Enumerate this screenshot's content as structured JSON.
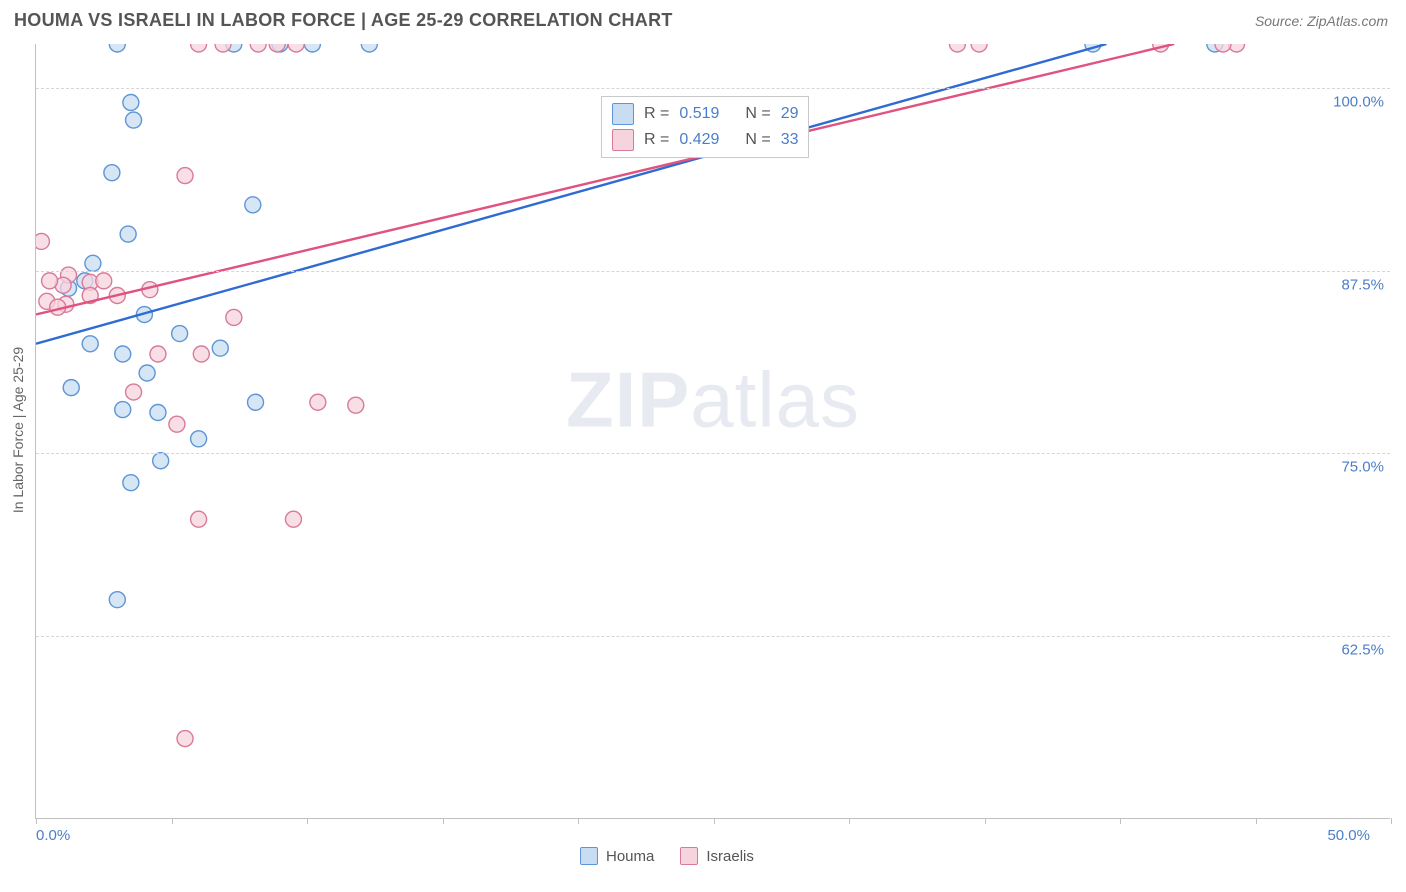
{
  "title": "HOUMA VS ISRAELI IN LABOR FORCE | AGE 25-29 CORRELATION CHART",
  "source": "Source: ZipAtlas.com",
  "yaxis_title": "In Labor Force | Age 25-29",
  "watermark_a": "ZIP",
  "watermark_b": "atlas",
  "chart": {
    "type": "scatter",
    "xlim": [
      0,
      50
    ],
    "ylim": [
      50,
      103
    ],
    "xlabel_start": "0.0%",
    "xlabel_end": "50.0%",
    "ytick_values": [
      62.5,
      75.0,
      87.5,
      100.0
    ],
    "ytick_labels": [
      "62.5%",
      "75.0%",
      "87.5%",
      "100.0%"
    ],
    "xtick_values": [
      0,
      5,
      10,
      15,
      20,
      25,
      30,
      35,
      40,
      45,
      50
    ],
    "grid_color": "#d6d6d6",
    "axis_color": "#c0c0c0",
    "background_color": "#ffffff",
    "label_color": "#4a7ec9",
    "marker_radius": 8,
    "marker_stroke_width": 1.4,
    "line_width": 2.4,
    "series": [
      {
        "name": "Houma",
        "fill": "#c9ddf2",
        "stroke": "#5d95d6",
        "line_color": "#2f6bd0",
        "r_value": "0.519",
        "n_value": "29",
        "points": [
          [
            3.0,
            103
          ],
          [
            3.5,
            99
          ],
          [
            3.6,
            97.8
          ],
          [
            2.8,
            94.2
          ],
          [
            3.4,
            90.0
          ],
          [
            8.0,
            92.0
          ],
          [
            9.0,
            103
          ],
          [
            10.2,
            103
          ],
          [
            12.3,
            103
          ],
          [
            7.3,
            103
          ],
          [
            2.1,
            88.0
          ],
          [
            1.8,
            86.8
          ],
          [
            1.2,
            86.3
          ],
          [
            4.0,
            84.5
          ],
          [
            5.3,
            83.2
          ],
          [
            2.0,
            82.5
          ],
          [
            3.2,
            81.8
          ],
          [
            6.8,
            82.2
          ],
          [
            4.1,
            80.5
          ],
          [
            1.3,
            79.5
          ],
          [
            3.2,
            78.0
          ],
          [
            4.5,
            77.8
          ],
          [
            6.0,
            76.0
          ],
          [
            8.1,
            78.5
          ],
          [
            4.6,
            74.5
          ],
          [
            3.5,
            73.0
          ],
          [
            3.0,
            65.0
          ],
          [
            39.0,
            103
          ],
          [
            43.5,
            103
          ]
        ],
        "regression": {
          "x1": 0,
          "y1": 82.5,
          "x2": 39.5,
          "y2": 103
        }
      },
      {
        "name": "Israelis",
        "fill": "#f6d4dd",
        "stroke": "#d97a9a",
        "line_color": "#e0527f",
        "r_value": "0.429",
        "n_value": "33",
        "points": [
          [
            0.2,
            89.5
          ],
          [
            1.2,
            87.2
          ],
          [
            1.0,
            86.5
          ],
          [
            2.0,
            86.7
          ],
          [
            2.5,
            86.8
          ],
          [
            3.0,
            85.8
          ],
          [
            1.1,
            85.2
          ],
          [
            0.4,
            85.4
          ],
          [
            0.8,
            85.0
          ],
          [
            5.5,
            94.0
          ],
          [
            4.2,
            86.2
          ],
          [
            4.5,
            81.8
          ],
          [
            6.1,
            81.8
          ],
          [
            3.6,
            79.2
          ],
          [
            5.2,
            77.0
          ],
          [
            7.3,
            84.3
          ],
          [
            10.4,
            78.5
          ],
          [
            11.8,
            78.3
          ],
          [
            6.0,
            70.5
          ],
          [
            9.5,
            70.5
          ],
          [
            5.5,
            55.5
          ],
          [
            6.0,
            103
          ],
          [
            6.9,
            103
          ],
          [
            8.2,
            103
          ],
          [
            8.9,
            103
          ],
          [
            9.6,
            103
          ],
          [
            34.0,
            103
          ],
          [
            34.8,
            103
          ],
          [
            41.5,
            103
          ],
          [
            44.3,
            103
          ],
          [
            43.8,
            103
          ],
          [
            0.5,
            86.8
          ],
          [
            2.0,
            85.8
          ]
        ],
        "regression": {
          "x1": 0,
          "y1": 84.5,
          "x2": 42.0,
          "y2": 103
        }
      }
    ]
  },
  "legend": {
    "top": {
      "r_label": "R =",
      "n_label": "N ="
    },
    "bottom": [
      {
        "label": "Houma",
        "fill": "#c9ddf2",
        "stroke": "#5d95d6"
      },
      {
        "label": "Israelis",
        "fill": "#f6d4dd",
        "stroke": "#d97a9a"
      }
    ]
  }
}
